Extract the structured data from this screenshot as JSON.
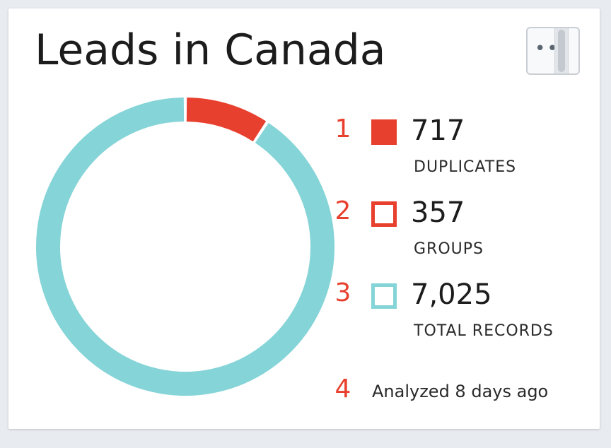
{
  "card": {
    "title": "Leads in Canada",
    "menu_label": "•••"
  },
  "chart_data": {
    "type": "pie",
    "variant": "donut",
    "segments": [
      {
        "label": "DUPLICATES",
        "value": 717,
        "color": "#e8402e"
      },
      {
        "label": "TOTAL RECORDS",
        "value": 7025,
        "color": "#85d4d8"
      }
    ]
  },
  "legend": {
    "items": [
      {
        "number": "1",
        "value": "717",
        "label": "DUPLICATES",
        "swatch_color": "#e8402e",
        "swatch_style": "filled"
      },
      {
        "number": "2",
        "value": "357",
        "label": "GROUPS",
        "swatch_color": "#e8402e",
        "swatch_style": "outline"
      },
      {
        "number": "3",
        "value": "7,025",
        "label": "TOTAL RECORDS",
        "swatch_color": "#85d4d8",
        "swatch_style": "outline"
      }
    ]
  },
  "footer": {
    "number": "4",
    "text": "Analyzed 8 days ago"
  }
}
